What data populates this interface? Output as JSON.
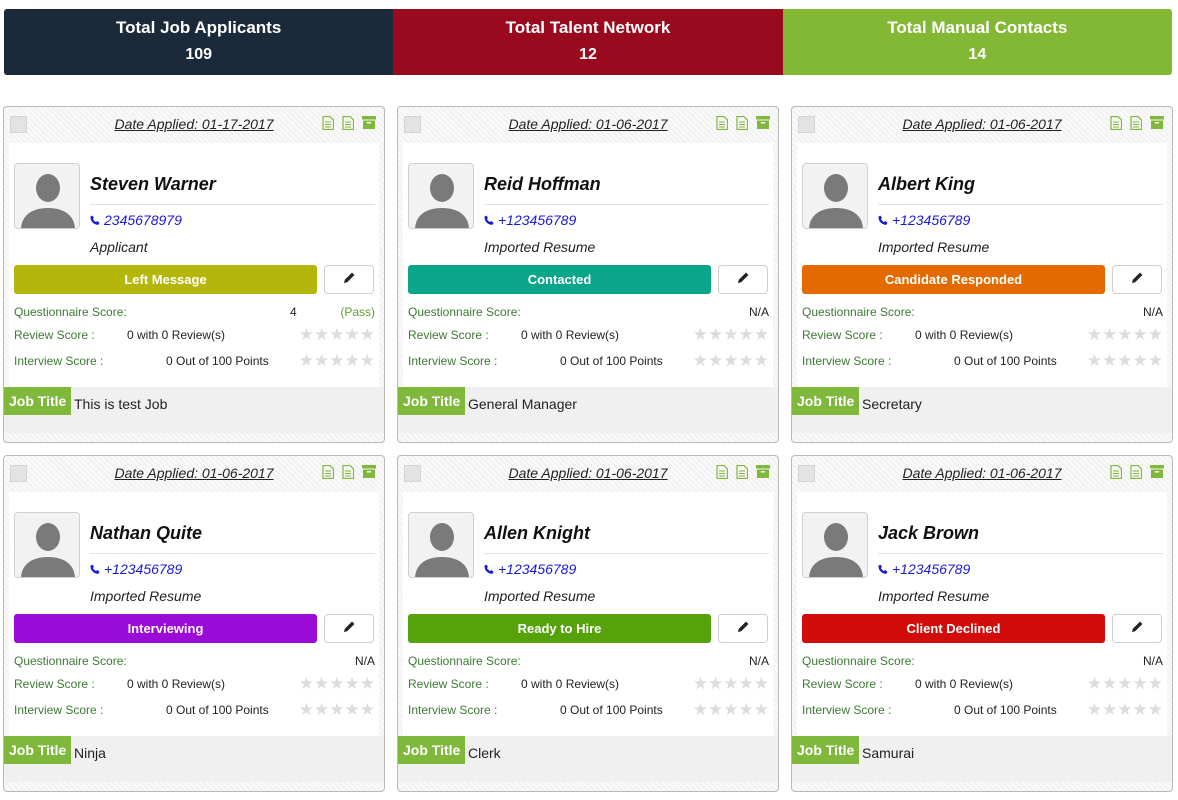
{
  "summary": [
    {
      "label": "Total Job Applicants",
      "value": "109",
      "color": "#1b2a3a"
    },
    {
      "label": "Total Talent Network",
      "value": "12",
      "color": "#9a0a1e"
    },
    {
      "label": "Total Manual Contacts",
      "value": "14",
      "color": "#82b834"
    }
  ],
  "labels": {
    "questionnaire": "Questionnaire Score:",
    "review": "Review Score :",
    "interview": "Interview Score :",
    "job_title_tag": "Job Title"
  },
  "cards": [
    {
      "date": "Date Applied: 01-17-2017",
      "name": "Steven Warner",
      "phone": "2345678979",
      "source": "Applicant",
      "status": "Left Message",
      "status_color": "#b5b60c",
      "questionnaire": "4",
      "pass": "(Pass)",
      "review": "0 with 0 Review(s)",
      "interview": "0 Out of 100 Points",
      "rating_stars": 0,
      "job_title": "This is test Job"
    },
    {
      "date": "Date Applied: 01-06-2017",
      "name": "Reid Hoffman",
      "phone": "+123456789",
      "source": "Imported Resume",
      "status": "Contacted",
      "status_color": "#0aa58a",
      "questionnaire": "N/A",
      "pass": "",
      "review": "0 with 0 Review(s)",
      "interview": "0 Out of 100 Points",
      "rating_stars": 0,
      "job_title": "General Manager"
    },
    {
      "date": "Date Applied: 01-06-2017",
      "name": "Albert King",
      "phone": "+123456789",
      "source": "Imported Resume",
      "status": "Candidate Responded",
      "status_color": "#e46a00",
      "questionnaire": "N/A",
      "pass": "",
      "review": "0 with 0 Review(s)",
      "interview": "0 Out of 100 Points",
      "rating_stars": 0,
      "job_title": "Secretary"
    },
    {
      "date": "Date Applied: 01-06-2017",
      "name": "Nathan Quite",
      "phone": "+123456789",
      "source": "Imported Resume",
      "status": "Interviewing",
      "status_color": "#9a0bd8",
      "questionnaire": "N/A",
      "pass": "",
      "review": "0 with 0 Review(s)",
      "interview": "0 Out of 100 Points",
      "rating_stars": 0,
      "job_title": "Ninja"
    },
    {
      "date": "Date Applied: 01-06-2017",
      "name": "Allen Knight",
      "phone": "+123456789",
      "source": "Imported Resume",
      "status": "Ready to Hire",
      "status_color": "#56a20a",
      "questionnaire": "N/A",
      "pass": "",
      "review": "0 with 0 Review(s)",
      "interview": "0 Out of 100 Points",
      "rating_stars": 0,
      "job_title": "Clerk"
    },
    {
      "date": "Date Applied: 01-06-2017",
      "name": "Jack Brown",
      "phone": "+123456789",
      "source": "Imported Resume",
      "status": "Client Declined",
      "status_color": "#d20b0b",
      "questionnaire": "N/A",
      "pass": "",
      "review": "0 with 0 Review(s)",
      "interview": "0 Out of 100 Points",
      "rating_stars": 0,
      "job_title": "Samurai"
    }
  ],
  "icons": [
    "document-icon",
    "document-lines-icon",
    "archive-icon",
    "phone-icon",
    "pencil-icon",
    "avatar-silhouette-icon",
    "star-icon"
  ]
}
